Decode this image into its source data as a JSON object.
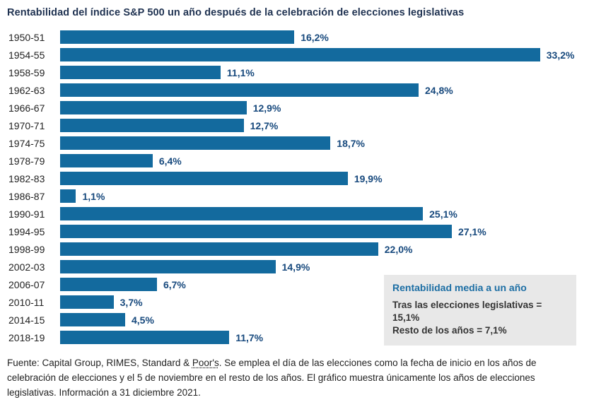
{
  "title": "Rentabilidad del índice S&P 500 un año después de la celebración de elecciones legislativas",
  "chart_data": {
    "type": "bar",
    "orientation": "horizontal",
    "categories": [
      "1950-51",
      "1954-55",
      "1958-59",
      "1962-63",
      "1966-67",
      "1970-71",
      "1974-75",
      "1978-79",
      "1982-83",
      "1986-87",
      "1990-91",
      "1994-95",
      "1998-99",
      "2002-03",
      "2006-07",
      "2010-11",
      "2014-15",
      "2018-19"
    ],
    "values": [
      16.2,
      33.2,
      11.1,
      24.8,
      12.9,
      12.7,
      18.7,
      6.4,
      19.9,
      1.1,
      25.1,
      27.1,
      22.0,
      14.9,
      6.7,
      3.7,
      4.5,
      11.7
    ],
    "value_labels": [
      "16,2%",
      "33,2%",
      "11,1%",
      "24,8%",
      "12,9%",
      "12,7%",
      "18,7%",
      "6,4%",
      "19,9%",
      "1,1%",
      "25,1%",
      "27,1%",
      "22,0%",
      "14,9%",
      "6,7%",
      "3,7%",
      "4,5%",
      "11,7%"
    ],
    "title": "Rentabilidad del índice S&P 500 un año después de la celebración de elecciones legislativas",
    "xlabel": "",
    "ylabel": "",
    "xlim": [
      0,
      36
    ],
    "grid": false,
    "legend_position": "inside-bottom-right"
  },
  "legend": {
    "title": "Rentabilidad media a un año",
    "line1": "Tras las elecciones legislativas = 15,1%",
    "line2": "Resto de los años = 7,1%"
  },
  "footer": {
    "part1": "Fuente: Capital Group, RIMES, Standard & ",
    "underlined": "Poor's",
    "part2": ". Se emplea el día de las elecciones como la fecha de inicio en los años de celebración de elecciones y el 5 de noviembre en el resto de los años. El gráfico muestra únicamente los años de elecciones legislativas. Información a 31 diciembre 2021."
  },
  "colors": {
    "bar": "#136a9e",
    "value_label": "#17497d",
    "title": "#1f3251",
    "legend_bg": "#e8e8e8",
    "legend_title": "#1c6ea4"
  }
}
